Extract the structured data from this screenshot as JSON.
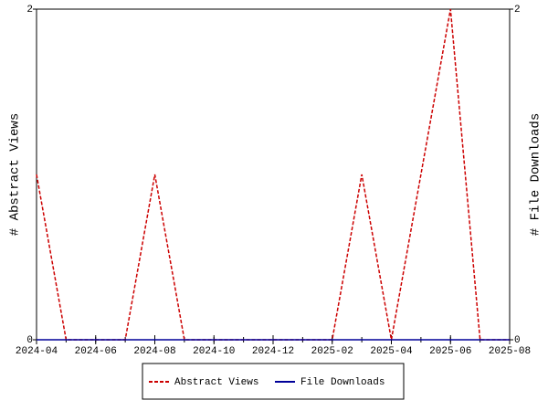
{
  "chart_data": {
    "type": "line",
    "y_label": "# Abstract Views",
    "y2_label": "# File Downloads",
    "x": [
      "2024-04",
      "2024-05",
      "2024-06",
      "2024-07",
      "2024-08",
      "2024-09",
      "2024-10",
      "2024-11",
      "2024-12",
      "2025-01",
      "2025-02",
      "2025-03",
      "2025-04",
      "2025-05",
      "2025-06",
      "2025-07",
      "2025-08"
    ],
    "series": [
      {
        "name": "Abstract Views",
        "color": "#cc0000",
        "dashed": true,
        "values": [
          1,
          0,
          0,
          0,
          1,
          0,
          0,
          0,
          0,
          0,
          0,
          1,
          0,
          1,
          2,
          0,
          0
        ]
      },
      {
        "name": "File Downloads",
        "color": "#000099",
        "axis": "y2",
        "values": [
          0,
          0,
          0,
          0,
          0,
          0,
          0,
          0,
          0,
          0,
          0,
          0,
          0,
          0,
          0,
          0,
          0
        ]
      }
    ],
    "xlim": [
      "2024-04",
      "2025-08"
    ],
    "xticks": [
      "2024-04",
      "2024-06",
      "2024-08",
      "2024-10",
      "2024-12",
      "2025-02",
      "2025-04",
      "2025-06",
      "2025-08"
    ],
    "ylim": [
      0,
      2
    ],
    "yticks": [
      0,
      2
    ],
    "y2lim": [
      0,
      2
    ],
    "y2ticks": [
      0,
      2
    ],
    "legend": "bottom"
  }
}
